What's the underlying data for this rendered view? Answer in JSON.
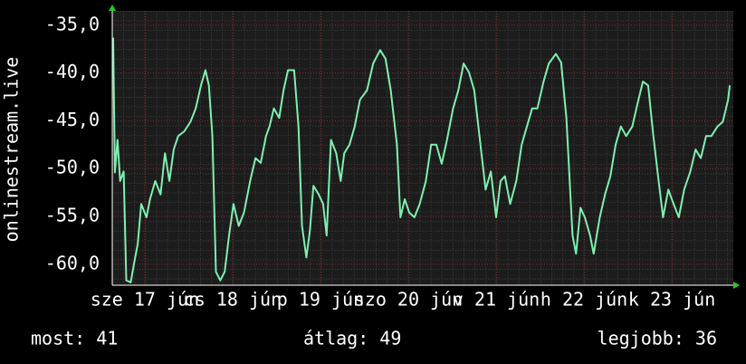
{
  "chart_data": {
    "type": "line",
    "y_label": "onlinestream.live",
    "color": "#7ef0b0",
    "grid": true,
    "xlim": [
      16.63,
      23.7
    ],
    "ylim": [
      -62.2,
      -33.5
    ],
    "xticks": [
      {
        "value": 17,
        "label": "sze 17 jún"
      },
      {
        "value": 18,
        "label": "cs 18 jún"
      },
      {
        "value": 19,
        "label": "p 19 jún"
      },
      {
        "value": 20,
        "label": "szo 20 jún"
      },
      {
        "value": 21,
        "label": "v 21 jún"
      },
      {
        "value": 22,
        "label": "h 22 jún"
      },
      {
        "value": 23,
        "label": "k 23 jún"
      }
    ],
    "yticks": [
      {
        "value": -35,
        "label": "-35,0"
      },
      {
        "value": -40,
        "label": "-40,0"
      },
      {
        "value": -45,
        "label": "-45,0"
      },
      {
        "value": -50,
        "label": "-50,0"
      },
      {
        "value": -55,
        "label": "-55,0"
      },
      {
        "value": -60,
        "label": "-60,0"
      }
    ],
    "x": [
      16.64,
      16.66,
      16.69,
      16.72,
      16.76,
      16.79,
      16.84,
      16.88,
      16.92,
      16.96,
      17.02,
      17.06,
      17.12,
      17.18,
      17.23,
      17.28,
      17.33,
      17.38,
      17.45,
      17.52,
      17.58,
      17.64,
      17.69,
      17.73,
      17.77,
      17.81,
      17.86,
      17.91,
      17.96,
      18.01,
      18.07,
      18.13,
      18.2,
      18.26,
      18.32,
      18.38,
      18.42,
      18.47,
      18.53,
      18.58,
      18.63,
      18.7,
      18.75,
      18.79,
      18.84,
      18.88,
      18.92,
      18.98,
      19.03,
      19.07,
      19.12,
      19.18,
      19.23,
      19.27,
      19.33,
      19.39,
      19.45,
      19.53,
      19.6,
      19.68,
      19.74,
      19.8,
      19.87,
      19.91,
      19.96,
      20.01,
      20.07,
      20.13,
      20.2,
      20.26,
      20.32,
      20.38,
      20.44,
      20.51,
      20.57,
      20.63,
      20.69,
      20.75,
      20.81,
      20.88,
      20.94,
      21.0,
      21.05,
      21.1,
      21.16,
      21.23,
      21.29,
      21.35,
      21.41,
      21.47,
      21.54,
      21.6,
      21.68,
      21.74,
      21.8,
      21.87,
      21.91,
      21.96,
      22.01,
      22.07,
      22.11,
      22.18,
      22.24,
      22.3,
      22.36,
      22.42,
      22.48,
      22.55,
      22.61,
      22.67,
      22.73,
      22.79,
      22.85,
      22.9,
      22.96,
      23.02,
      23.08,
      23.14,
      23.21,
      23.27,
      23.33,
      23.39,
      23.45,
      23.52,
      23.58,
      23.64,
      23.66
    ],
    "values": [
      -36.3,
      -50.4,
      -47.0,
      -51.3,
      -50.3,
      -61.7,
      -61.9,
      -59.8,
      -57.9,
      -53.7,
      -55.1,
      -53.2,
      -51.3,
      -52.7,
      -48.4,
      -51.3,
      -48.0,
      -46.6,
      -46.1,
      -45.1,
      -43.7,
      -41.3,
      -39.7,
      -41.3,
      -46.6,
      -60.8,
      -61.7,
      -60.8,
      -57.0,
      -53.7,
      -56.0,
      -54.6,
      -51.3,
      -48.9,
      -49.4,
      -46.6,
      -45.6,
      -43.7,
      -44.7,
      -41.8,
      -39.7,
      -39.7,
      -45.6,
      -56.0,
      -59.3,
      -56.5,
      -51.8,
      -52.7,
      -53.7,
      -57.0,
      -47.0,
      -48.4,
      -51.3,
      -48.4,
      -47.5,
      -45.6,
      -42.8,
      -41.8,
      -39.0,
      -37.6,
      -38.5,
      -41.8,
      -47.5,
      -55.1,
      -53.2,
      -54.6,
      -55.1,
      -53.7,
      -51.3,
      -47.5,
      -47.5,
      -49.5,
      -47.0,
      -43.7,
      -41.8,
      -39.0,
      -39.9,
      -41.8,
      -46.6,
      -52.2,
      -50.3,
      -55.1,
      -51.3,
      -50.8,
      -53.7,
      -51.3,
      -47.5,
      -45.6,
      -43.7,
      -43.7,
      -40.9,
      -39.0,
      -38.0,
      -38.9,
      -44.7,
      -57.0,
      -58.9,
      -54.1,
      -55.1,
      -57.0,
      -58.9,
      -55.1,
      -52.7,
      -50.8,
      -47.5,
      -45.6,
      -46.6,
      -45.6,
      -43.2,
      -40.9,
      -41.3,
      -46.6,
      -51.3,
      -55.1,
      -52.2,
      -53.7,
      -55.1,
      -52.2,
      -50.3,
      -48.0,
      -48.9,
      -46.6,
      -46.6,
      -45.6,
      -45.1,
      -42.8,
      -41.3
    ]
  },
  "footer": {
    "current": "most: 41",
    "average": "átlag: 49",
    "best": "legjobb: 36"
  }
}
